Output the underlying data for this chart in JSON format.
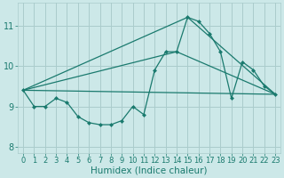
{
  "xlabel": "Humidex (Indice chaleur)",
  "bg_color": "#cce8e8",
  "grid_color": "#aacccc",
  "line_color": "#1a7a6e",
  "xlim": [
    -0.5,
    23.5
  ],
  "ylim": [
    7.85,
    11.55
  ],
  "yticks": [
    8,
    9,
    10,
    11
  ],
  "xticks": [
    0,
    1,
    2,
    3,
    4,
    5,
    6,
    7,
    8,
    9,
    10,
    11,
    12,
    13,
    14,
    15,
    16,
    17,
    18,
    19,
    20,
    21,
    22,
    23
  ],
  "series1_x": [
    0,
    1,
    2,
    3,
    4,
    5,
    6,
    7,
    8,
    9,
    10,
    11,
    12,
    13,
    14,
    15,
    16,
    17,
    18,
    19,
    20,
    21,
    22,
    23
  ],
  "series1_y": [
    9.4,
    9.0,
    9.0,
    9.2,
    9.1,
    8.75,
    8.6,
    8.55,
    8.55,
    8.65,
    9.0,
    8.8,
    9.9,
    10.35,
    10.35,
    11.2,
    11.1,
    10.8,
    10.35,
    9.2,
    10.1,
    9.9,
    9.5,
    9.3
  ],
  "line1_x": [
    0,
    15,
    23
  ],
  "line1_y": [
    9.4,
    11.2,
    9.3
  ],
  "line2_x": [
    0,
    14,
    23
  ],
  "line2_y": [
    9.4,
    10.35,
    9.3
  ],
  "line3_x": [
    0,
    23
  ],
  "line3_y": [
    9.4,
    9.3
  ],
  "marker_style": "D",
  "marker_size": 2.5,
  "line_width": 0.9,
  "fontsize_label": 7.5,
  "fontsize_tick": 6.0
}
